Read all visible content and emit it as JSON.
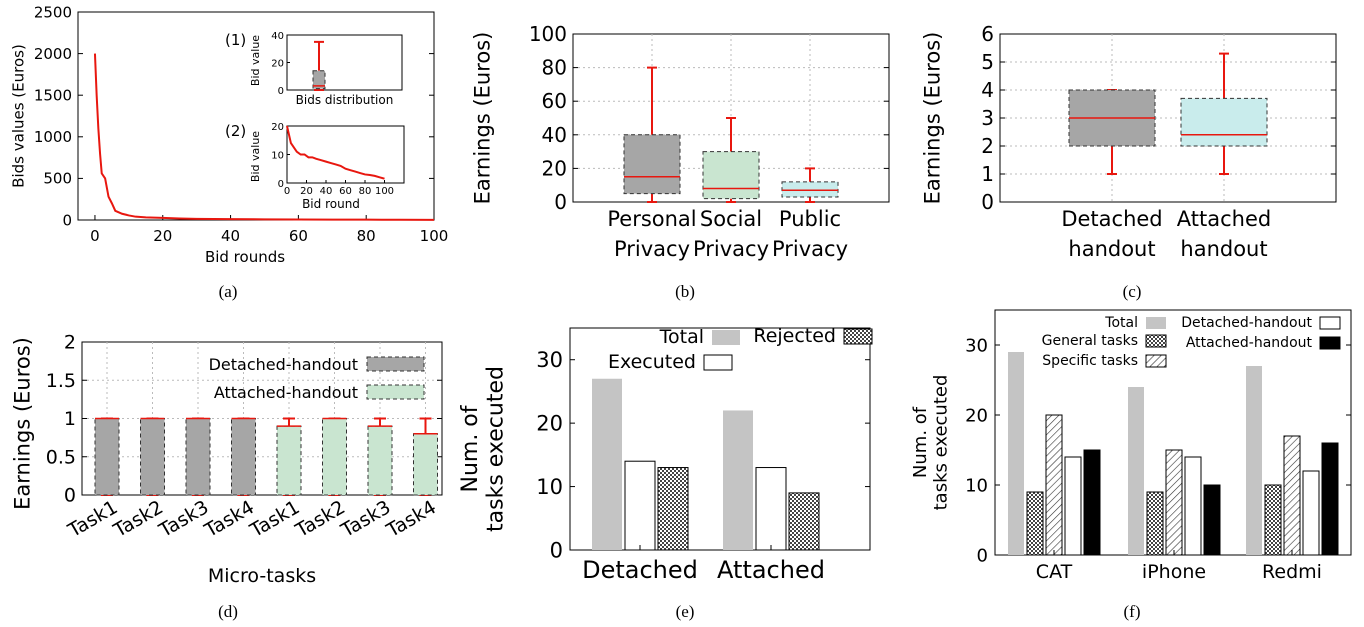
{
  "captions": [
    "(a)",
    "(b)",
    "(c)",
    "(d)",
    "(e)",
    "(f)"
  ],
  "chart_data": [
    {
      "id": "a",
      "type": "line",
      "xlabel": "Bid rounds",
      "ylabel": "Bids values (Euros)",
      "xlim": [
        -5,
        100
      ],
      "ylim": [
        0,
        2500
      ],
      "xticks": [
        0,
        20,
        40,
        60,
        80,
        100
      ],
      "yticks": [
        0,
        500,
        1000,
        1500,
        2000,
        2500
      ],
      "x": [
        0,
        0.5,
        1,
        1.5,
        2,
        3,
        4,
        5,
        6,
        8,
        10,
        12,
        15,
        20,
        25,
        30,
        40,
        50,
        60,
        70,
        80,
        90,
        100
      ],
      "y": [
        2000,
        1500,
        1100,
        800,
        560,
        500,
        280,
        200,
        110,
        75,
        55,
        40,
        32,
        25,
        18,
        14,
        10,
        8,
        6,
        5,
        4,
        3,
        2
      ],
      "color": "#e8170f",
      "insets": [
        {
          "id": "a1",
          "tag": "(1)",
          "type": "box",
          "xlabel": "Bids distribution",
          "ylabel": "Bid value",
          "ylim": [
            0,
            40
          ],
          "yticks": [
            0,
            20,
            40
          ],
          "box": {
            "min": 0,
            "q1": 1,
            "median": 3,
            "q3": 14,
            "max": 35
          }
        },
        {
          "id": "a2",
          "tag": "(2)",
          "type": "line",
          "xlabel": "Bid round",
          "ylabel": "Bid value",
          "xlim": [
            0,
            120
          ],
          "ylim": [
            0,
            20
          ],
          "xticks": [
            0,
            20,
            40,
            60,
            80,
            100
          ],
          "yticks": [
            0,
            10,
            20
          ],
          "x": [
            0,
            2,
            4,
            8,
            10,
            14,
            18,
            22,
            26,
            30,
            35,
            40,
            45,
            50,
            55,
            60,
            65,
            70,
            75,
            80,
            85,
            90,
            95,
            100
          ],
          "y": [
            20,
            17,
            14,
            12,
            11,
            10,
            10,
            9,
            9,
            8.5,
            8,
            7.5,
            7,
            6.5,
            6,
            5,
            4.5,
            4,
            3.5,
            3,
            2.8,
            2.5,
            2,
            1.5
          ]
        }
      ]
    },
    {
      "id": "b",
      "type": "box",
      "ylabel": "Earnings (Euros)",
      "ylim": [
        0,
        100
      ],
      "yticks": [
        0,
        20,
        40,
        60,
        80,
        100
      ],
      "categories": [
        [
          "Personal",
          "Privacy"
        ],
        [
          "Social",
          "Privacy"
        ],
        [
          "Public",
          "Privacy"
        ]
      ],
      "boxes": [
        {
          "min": 0,
          "q1": 5,
          "median": 15,
          "q3": 40,
          "max": 80,
          "fill": "#a6a6a6"
        },
        {
          "min": 0,
          "q1": 2,
          "median": 8,
          "q3": 30,
          "max": 50,
          "fill": "#c9e5d0"
        },
        {
          "min": 0,
          "q1": 3,
          "median": 7,
          "q3": 12,
          "max": 20,
          "fill": "#c9ecec"
        }
      ]
    },
    {
      "id": "c",
      "type": "box",
      "ylabel": "Earnings (Euros)",
      "ylim": [
        0,
        6
      ],
      "yticks": [
        0,
        1,
        2,
        3,
        4,
        5,
        6
      ],
      "categories": [
        [
          "Detached",
          "handout"
        ],
        [
          "Attached",
          "handout"
        ]
      ],
      "boxes": [
        {
          "min": 1,
          "q1": 2,
          "median": 3,
          "q3": 4,
          "max": 4,
          "fill": "#a6a6a6"
        },
        {
          "min": 1,
          "q1": 2,
          "median": 2.4,
          "q3": 3.7,
          "max": 5.3,
          "fill": "#c9ecec"
        }
      ]
    },
    {
      "id": "d",
      "type": "box",
      "xlabel": "Micro-tasks",
      "ylabel": "Earnings (Euros)",
      "ylim": [
        0,
        2
      ],
      "yticks": [
        "0",
        "0.5",
        "1",
        "1.5",
        "2"
      ],
      "categories": [
        "Task1",
        "Task2",
        "Task3",
        "Task4",
        "Task1",
        "Task2",
        "Task3",
        "Task4"
      ],
      "legend": [
        {
          "name": "Detached-handout",
          "fill": "#a6a6a6"
        },
        {
          "name": "Attached-handout",
          "fill": "#c9e5d0"
        }
      ],
      "boxes": [
        {
          "min": 0,
          "q1": 0,
          "median": 1,
          "q3": 1,
          "max": 1,
          "group": 0
        },
        {
          "min": 0,
          "q1": 0,
          "median": 1,
          "q3": 1,
          "max": 1,
          "group": 0
        },
        {
          "min": 0,
          "q1": 0,
          "median": 1,
          "q3": 1,
          "max": 1,
          "group": 0
        },
        {
          "min": 0,
          "q1": 0,
          "median": 1,
          "q3": 1,
          "max": 1,
          "group": 0
        },
        {
          "min": 0,
          "q1": 0,
          "median": 0.9,
          "q3": 0.9,
          "max": 1,
          "group": 1
        },
        {
          "min": 0,
          "q1": 0,
          "median": 1,
          "q3": 1,
          "max": 1,
          "group": 1
        },
        {
          "min": 0,
          "q1": 0,
          "median": 0.9,
          "q3": 0.9,
          "max": 1,
          "group": 1
        },
        {
          "min": 0,
          "q1": 0,
          "median": 0.8,
          "q3": 0.8,
          "max": 1,
          "group": 1
        }
      ]
    },
    {
      "id": "e",
      "type": "bar",
      "ylabel": [
        "Num. of",
        "tasks executed"
      ],
      "ylim": [
        0,
        35
      ],
      "yticks": [
        0,
        10,
        20,
        30
      ],
      "categories": [
        "Detached",
        "Attached"
      ],
      "series": [
        {
          "name": "Total",
          "values": [
            27,
            22
          ],
          "style": "gray"
        },
        {
          "name": "Executed",
          "values": [
            14,
            13
          ],
          "style": "white"
        },
        {
          "name": "Rejected",
          "values": [
            13,
            9
          ],
          "style": "checker"
        }
      ]
    },
    {
      "id": "f",
      "type": "bar",
      "ylabel": [
        "Num. of",
        "tasks executed"
      ],
      "ylim": [
        0,
        35
      ],
      "yticks": [
        0,
        10,
        20,
        30
      ],
      "categories": [
        "CAT",
        "iPhone",
        "Redmi"
      ],
      "series": [
        {
          "name": "Total",
          "values": [
            29,
            24,
            27
          ],
          "style": "gray"
        },
        {
          "name": "General tasks",
          "values": [
            9,
            9,
            10
          ],
          "style": "checker"
        },
        {
          "name": "Specific tasks",
          "values": [
            20,
            15,
            17
          ],
          "style": "hatch"
        },
        {
          "name": "Detached-handout",
          "values": [
            14,
            14,
            12
          ],
          "style": "white"
        },
        {
          "name": "Attached-handout",
          "values": [
            15,
            10,
            16
          ],
          "style": "black"
        }
      ]
    }
  ]
}
